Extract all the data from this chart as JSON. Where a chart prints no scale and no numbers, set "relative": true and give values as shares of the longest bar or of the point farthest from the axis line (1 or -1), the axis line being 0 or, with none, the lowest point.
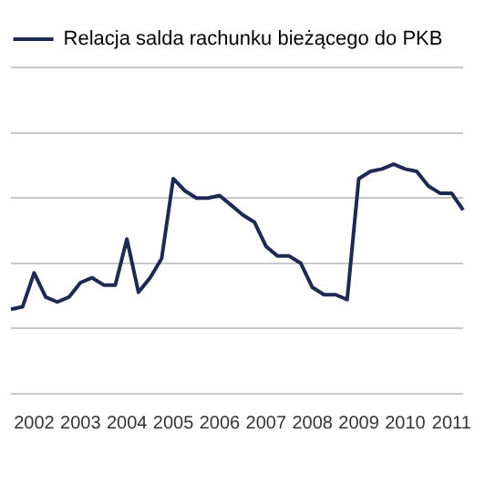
{
  "chart_data": {
    "type": "line",
    "relative": true,
    "categories": [
      null,
      null,
      "2002",
      null,
      null,
      null,
      "2003",
      null,
      null,
      null,
      "2004",
      null,
      null,
      null,
      "2005",
      null,
      null,
      null,
      "2006",
      null,
      null,
      null,
      "2007",
      null,
      null,
      null,
      "2008",
      null,
      null,
      null,
      "2009",
      null,
      null,
      null,
      "2010",
      null,
      null,
      null,
      "2011",
      null
    ],
    "series": [
      {
        "name": "Relacja salda rachunku bieżącego do PKB",
        "color": "#1f2a52",
        "values": [
          -1.0,
          -0.99,
          -0.85,
          -0.95,
          -0.97,
          -0.95,
          -0.89,
          -0.87,
          -0.9,
          -0.9,
          -0.71,
          -0.93,
          -0.87,
          -0.79,
          -0.46,
          -0.51,
          -0.54,
          -0.54,
          -0.53,
          -0.57,
          -0.61,
          -0.64,
          -0.74,
          -0.78,
          -0.78,
          -0.81,
          -0.91,
          -0.94,
          -0.94,
          -0.96,
          -0.46,
          -0.43,
          -0.42,
          -0.4,
          -0.42,
          -0.43,
          -0.49,
          -0.52,
          -0.52,
          -0.59
        ]
      }
    ],
    "grid": "y",
    "legend": "top",
    "marker": "none",
    "line_style": "solid"
  }
}
